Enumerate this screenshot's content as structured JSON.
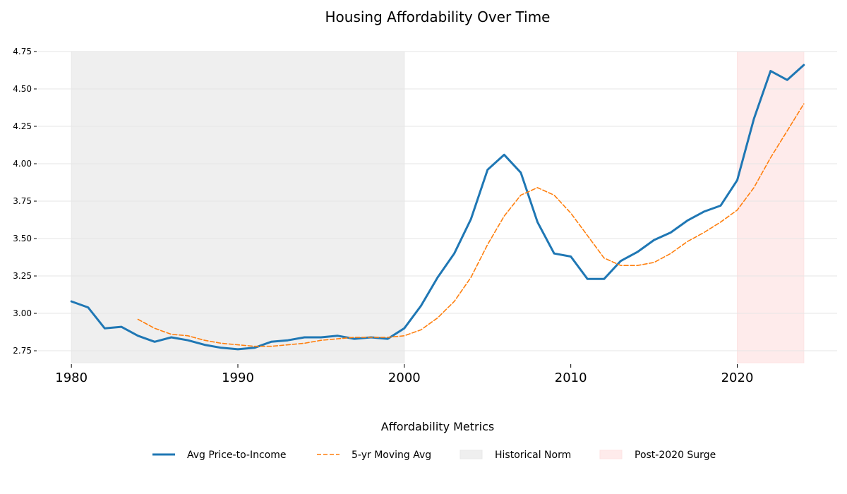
{
  "chart_data": {
    "type": "line",
    "title": "Housing Affordability Over Time",
    "xlabel": "",
    "ylabel": "",
    "xlim": [
      1978,
      2026
    ],
    "ylim": [
      2.67,
      4.75
    ],
    "x_ticks": [
      1980,
      1990,
      2000,
      2010,
      2020
    ],
    "y_ticks": [
      "2.75",
      "3.00",
      "3.25",
      "3.50",
      "3.75",
      "4.00",
      "4.25",
      "4.50",
      "4.75"
    ],
    "grid": "horizontal",
    "series": [
      {
        "name": "Avg Price-to-Income",
        "color": "#1f77b4",
        "style": "solid",
        "x": [
          1980,
          1981,
          1982,
          1983,
          1984,
          1985,
          1986,
          1987,
          1988,
          1989,
          1990,
          1991,
          1992,
          1993,
          1994,
          1995,
          1996,
          1997,
          1998,
          1999,
          2000,
          2001,
          2002,
          2003,
          2004,
          2005,
          2006,
          2007,
          2008,
          2009,
          2010,
          2011,
          2012,
          2013,
          2014,
          2015,
          2016,
          2017,
          2018,
          2019,
          2020,
          2021,
          2022,
          2023,
          2024
        ],
        "y": [
          3.08,
          3.04,
          2.9,
          2.91,
          2.85,
          2.81,
          2.84,
          2.82,
          2.79,
          2.77,
          2.76,
          2.77,
          2.81,
          2.82,
          2.84,
          2.84,
          2.85,
          2.83,
          2.84,
          2.83,
          2.9,
          3.05,
          3.24,
          3.4,
          3.63,
          3.96,
          4.06,
          3.94,
          3.61,
          3.4,
          3.38,
          3.23,
          3.23,
          3.35,
          3.41,
          3.49,
          3.54,
          3.62,
          3.68,
          3.72,
          3.89,
          4.3,
          4.62,
          4.56,
          4.66
        ]
      },
      {
        "name": "5-yr Moving Avg",
        "color": "#ff7f0e",
        "style": "dashed",
        "x": [
          1984,
          1985,
          1986,
          1987,
          1988,
          1989,
          1990,
          1991,
          1992,
          1993,
          1994,
          1995,
          1996,
          1997,
          1998,
          1999,
          2000,
          2001,
          2002,
          2003,
          2004,
          2005,
          2006,
          2007,
          2008,
          2009,
          2010,
          2011,
          2012,
          2013,
          2014,
          2015,
          2016,
          2017,
          2018,
          2019,
          2020,
          2021,
          2022,
          2023,
          2024
        ],
        "y": [
          2.96,
          2.9,
          2.86,
          2.85,
          2.82,
          2.8,
          2.79,
          2.78,
          2.78,
          2.79,
          2.8,
          2.82,
          2.83,
          2.84,
          2.84,
          2.84,
          2.85,
          2.89,
          2.97,
          3.08,
          3.24,
          3.46,
          3.65,
          3.79,
          3.84,
          3.79,
          3.67,
          3.52,
          3.37,
          3.32,
          3.32,
          3.34,
          3.4,
          3.48,
          3.54,
          3.61,
          3.69,
          3.84,
          4.04,
          4.22,
          4.4
        ]
      }
    ],
    "shaded_regions": [
      {
        "name": "Historical Norm",
        "x_start": 1980,
        "x_end": 2000,
        "color": "#e8e8e8"
      },
      {
        "name": "Post-2020 Surge",
        "x_start": 2020,
        "x_end": 2024,
        "color": "#fde3e3"
      }
    ],
    "legend": {
      "title": "Affordability Metrics",
      "placement": "bottom-center",
      "entries": [
        "Avg Price-to-Income",
        "5-yr Moving Avg",
        "Historical Norm",
        "Post-2020 Surge"
      ]
    }
  }
}
